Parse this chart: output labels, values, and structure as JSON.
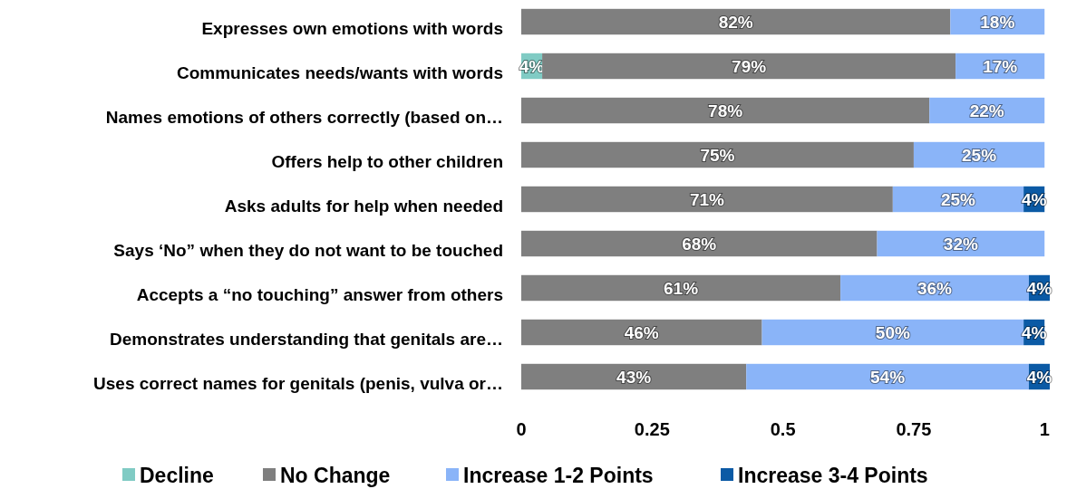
{
  "chart_data": {
    "type": "bar",
    "orientation": "horizontal",
    "stacked": true,
    "categories": [
      "Expresses own emotions with words",
      "Communicates needs/wants with words",
      "Names emotions of others correctly (based on…",
      "Offers help to other children",
      "Asks adults for help when needed",
      "Says ‘No” when they do not want to be touched",
      "Accepts a “no touching” answer from others",
      "Demonstrates understanding that genitals are…",
      "Uses correct names for genitals (penis, vulva or…"
    ],
    "series": [
      {
        "name": "Decline",
        "color": "#80cbc4",
        "values": [
          null,
          0.04,
          null,
          null,
          null,
          null,
          null,
          null,
          null
        ],
        "value_labels": [
          null,
          "4%",
          null,
          null,
          null,
          null,
          null,
          null,
          null
        ]
      },
      {
        "name": "No Change",
        "color": "#7f7f7f",
        "values": [
          0.82,
          0.79,
          0.78,
          0.75,
          0.71,
          0.68,
          0.61,
          0.46,
          0.43
        ],
        "value_labels": [
          "82%",
          "79%",
          "78%",
          "75%",
          "71%",
          "68%",
          "61%",
          "46%",
          "43%"
        ]
      },
      {
        "name": "Increase 1-2 Points",
        "color": "#8ab4f8",
        "values": [
          0.18,
          0.17,
          0.22,
          0.25,
          0.25,
          0.32,
          0.36,
          0.5,
          0.54
        ],
        "value_labels": [
          "18%",
          "17%",
          "22%",
          "25%",
          "25%",
          "32%",
          "36%",
          "50%",
          "54%"
        ]
      },
      {
        "name": "Increase 3-4 Points",
        "color": "#0b5aa5",
        "values": [
          null,
          null,
          null,
          null,
          0.04,
          null,
          0.04,
          0.04,
          0.04
        ],
        "value_labels": [
          null,
          null,
          null,
          null,
          "4%",
          null,
          "4%",
          "4%",
          "4%"
        ]
      }
    ],
    "xlim": [
      0,
      1.01
    ],
    "xticks": [
      0,
      0.25,
      0.5,
      0.75,
      1
    ],
    "grid": false,
    "legend": "bottom"
  }
}
